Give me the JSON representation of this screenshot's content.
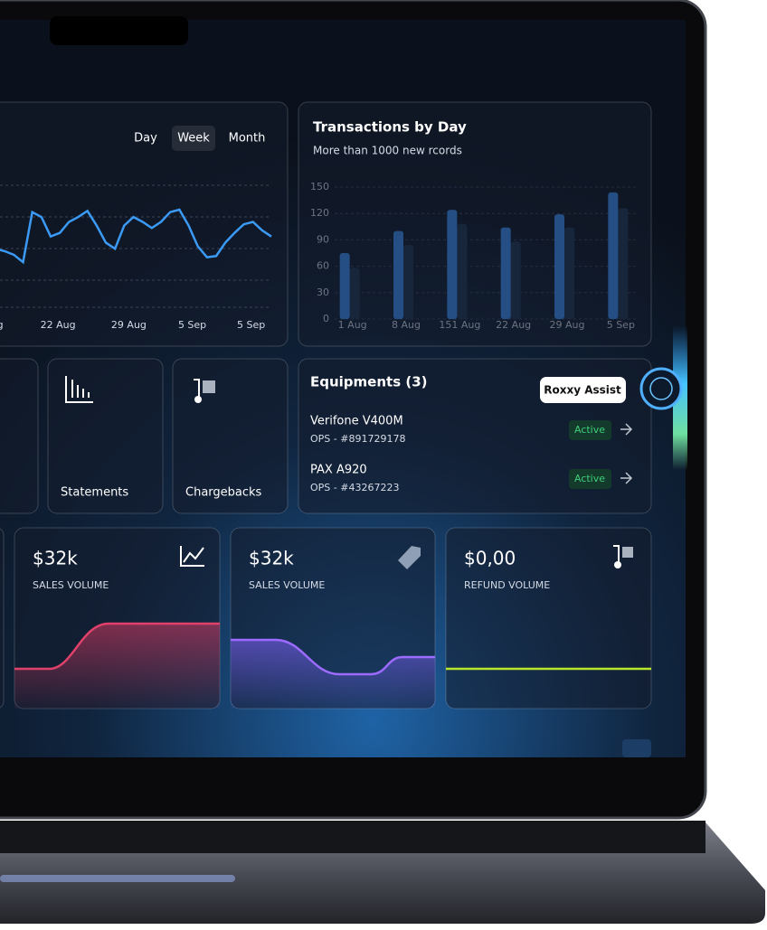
{
  "chart_data": [
    {
      "type": "line",
      "buttons": [
        "Day",
        "Week",
        "Month"
      ],
      "color": "#3b9af5",
      "x": [
        0,
        1,
        2,
        3,
        4,
        5,
        6,
        7,
        8,
        9,
        10,
        11,
        12,
        13,
        14,
        15,
        16,
        17,
        18,
        19,
        20,
        21,
        22,
        23,
        24,
        25,
        26,
        27,
        28,
        29,
        30
      ],
      "values": [
        48,
        46,
        43,
        37,
        78,
        74,
        58,
        61,
        70,
        74,
        79,
        67,
        53,
        48,
        67,
        74,
        70,
        65,
        70,
        78,
        80,
        67,
        50,
        41,
        42,
        53,
        61,
        68,
        70,
        63,
        58
      ],
      "xlim": [
        0,
        30
      ],
      "ylim": [
        0,
        100
      ],
      "xticks": [
        {
          "value": 0.5,
          "label": "g"
        },
        {
          "value": 6.8,
          "label": "22 Aug"
        },
        {
          "value": 14.5,
          "label": "29 Aug"
        },
        {
          "value": 21.4,
          "label": "5 Sep"
        },
        {
          "value": 27.8,
          "label": "5 Sep"
        }
      ]
    },
    {
      "type": "bar",
      "title": "Transactions by Day",
      "subtitle": "More than 1000 new rcords",
      "categories": [
        "1 Aug",
        "8 Aug",
        "151 Aug",
        "22 Aug",
        "29 Aug",
        "5 Sep"
      ],
      "series": [
        {
          "color": "#3b8ff0",
          "values": [
            75,
            100,
            124,
            104,
            119,
            144
          ]
        },
        {
          "color": "#1d3450",
          "values": [
            58,
            84,
            108,
            88,
            104,
            126
          ]
        }
      ],
      "ylim": [
        0,
        150
      ],
      "yticks": [
        0,
        30,
        60,
        90,
        120,
        150
      ],
      "grid": true
    }
  ],
  "tiles": [
    "Statements",
    "Chargebacks"
  ],
  "equipment": {
    "title": "Equipments (3)",
    "items": [
      {
        "name": "Verifone V400M",
        "id": "OPS - #891729178",
        "status": "Active"
      },
      {
        "name": "PAX A920",
        "id": "OPS - #43267223",
        "status": "Active"
      }
    ]
  },
  "assistant": "Roxxy Assist",
  "metrics": [
    {
      "value": "$32k",
      "label": "SALES VOLUME"
    },
    {
      "value": "$32k",
      "label": "SALES VOLUME"
    },
    {
      "value": "$0,00",
      "label": "REFUND VOLUME"
    }
  ]
}
